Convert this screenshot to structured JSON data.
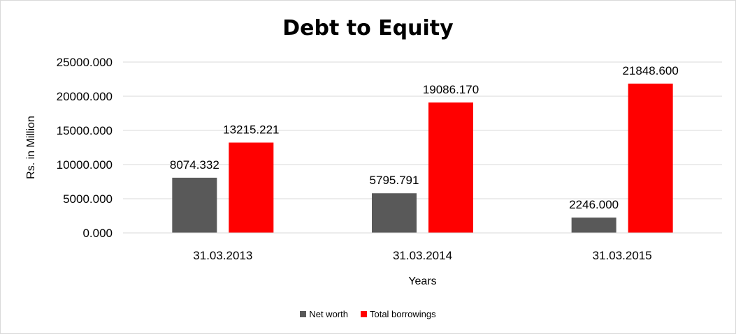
{
  "chart_data": {
    "type": "bar",
    "title": "Debt to Equity",
    "xlabel": "Years",
    "ylabel": "Rs. in Million",
    "categories": [
      "31.03.2013",
      "31.03.2014",
      "31.03.2015"
    ],
    "series": [
      {
        "name": "Net worth",
        "color": "#595959",
        "values": [
          8074.332,
          5795.791,
          2246.0
        ],
        "labels": [
          "8074.332",
          "5795.791",
          "2246.000"
        ]
      },
      {
        "name": "Total borrowings",
        "color": "#ff0000",
        "values": [
          13215.221,
          19086.17,
          21848.6
        ],
        "labels": [
          "13215.221",
          "19086.170",
          "21848.600"
        ]
      }
    ],
    "yticks": [
      "0.000",
      "5000.000",
      "10000.000",
      "15000.000",
      "20000.000",
      "25000.000"
    ],
    "ylim": [
      0,
      25000
    ],
    "grid": true,
    "legend_position": "bottom"
  }
}
